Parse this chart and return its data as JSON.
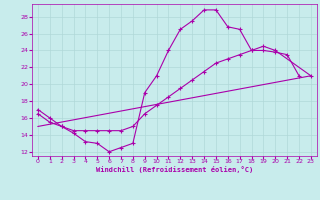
{
  "xlabel": "Windchill (Refroidissement éolien,°C)",
  "background_color": "#c8ecec",
  "grid_color": "#b0d8d8",
  "line_color": "#aa00aa",
  "xlim": [
    -0.5,
    23.5
  ],
  "ylim": [
    11.5,
    29.5
  ],
  "yticks": [
    12,
    14,
    16,
    18,
    20,
    22,
    24,
    26,
    28
  ],
  "xticks": [
    0,
    1,
    2,
    3,
    4,
    5,
    6,
    7,
    8,
    9,
    10,
    11,
    12,
    13,
    14,
    15,
    16,
    17,
    18,
    19,
    20,
    21,
    22,
    23
  ],
  "curve1_x": [
    0,
    1,
    2,
    3,
    4,
    5,
    6,
    7,
    8,
    9,
    10,
    11,
    12,
    13,
    14,
    15,
    16,
    17,
    18,
    19,
    20,
    21,
    22
  ],
  "curve1_y": [
    17.0,
    16.0,
    15.0,
    14.2,
    13.2,
    13.0,
    12.0,
    12.5,
    13.0,
    19.0,
    21.0,
    24.0,
    26.5,
    27.5,
    28.8,
    28.8,
    26.8,
    26.5,
    24.0,
    24.0,
    23.8,
    23.5,
    21.0
  ],
  "curve2_x": [
    0,
    1,
    2,
    3,
    4,
    5,
    6,
    7,
    8,
    9,
    10,
    11,
    12,
    13,
    14,
    15,
    16,
    17,
    18,
    19,
    20,
    23
  ],
  "curve2_y": [
    16.5,
    15.5,
    15.0,
    14.5,
    14.5,
    14.5,
    14.5,
    14.5,
    15.0,
    16.5,
    17.5,
    18.5,
    19.5,
    20.5,
    21.5,
    22.5,
    23.0,
    23.5,
    24.0,
    24.5,
    24.0,
    21.0
  ],
  "curve3_x": [
    0,
    23
  ],
  "curve3_y": [
    15.0,
    21.0
  ]
}
